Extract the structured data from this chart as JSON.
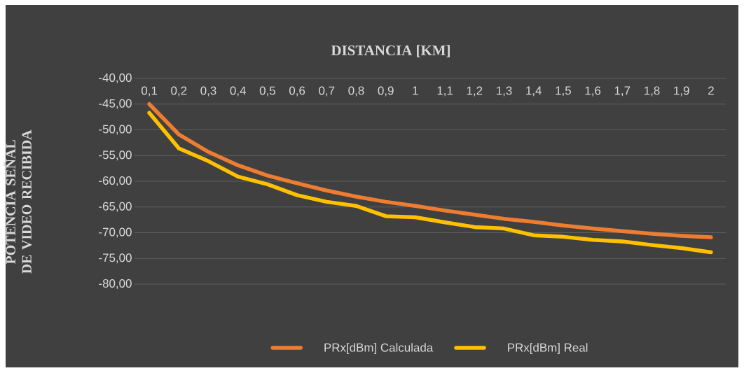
{
  "chart_data": {
    "type": "line",
    "title": "DISTANCIA [KM]",
    "ylabel": "POTENCIA SEÑAL DE VIDEO RECIBIDA",
    "categories": [
      "0,1",
      "0,2",
      "0,3",
      "0,4",
      "0,5",
      "0,6",
      "0,7",
      "0,8",
      "0,9",
      "1",
      "1,1",
      "1,2",
      "1,3",
      "1,4",
      "1,5",
      "1,6",
      "1,7",
      "1,8",
      "1,9",
      "2"
    ],
    "series": [
      {
        "name": "PRx[dBm] Calculada",
        "color": "#ed7d31",
        "values": [
          -45.0,
          -50.9,
          -54.3,
          -56.9,
          -58.9,
          -60.4,
          -61.8,
          -63.0,
          -64.0,
          -64.8,
          -65.7,
          -66.5,
          -67.3,
          -67.9,
          -68.6,
          -69.2,
          -69.7,
          -70.2,
          -70.6,
          -70.9
        ]
      },
      {
        "name": "PRx[dBm] Real",
        "color": "#ffc000",
        "values": [
          -46.7,
          -53.6,
          -56.1,
          -59.1,
          -60.6,
          -62.7,
          -64.0,
          -64.8,
          -66.8,
          -67.0,
          -68.0,
          -68.9,
          -69.2,
          -70.5,
          -70.8,
          -71.4,
          -71.7,
          -72.4,
          -73.0,
          -73.8
        ]
      }
    ],
    "ylim": [
      -80,
      -40
    ],
    "yticks": [
      {
        "value": -40,
        "label": "-40,00"
      },
      {
        "value": -45,
        "label": "-45,00"
      },
      {
        "value": -50,
        "label": "-50,00"
      },
      {
        "value": -55,
        "label": "-55,00"
      },
      {
        "value": -60,
        "label": "-60,00"
      },
      {
        "value": -65,
        "label": "-65,00"
      },
      {
        "value": -70,
        "label": "-70,00"
      },
      {
        "value": -75,
        "label": "-75,00"
      },
      {
        "value": -80,
        "label": "-80,00"
      }
    ],
    "grid": "y",
    "legend": "bottom"
  }
}
